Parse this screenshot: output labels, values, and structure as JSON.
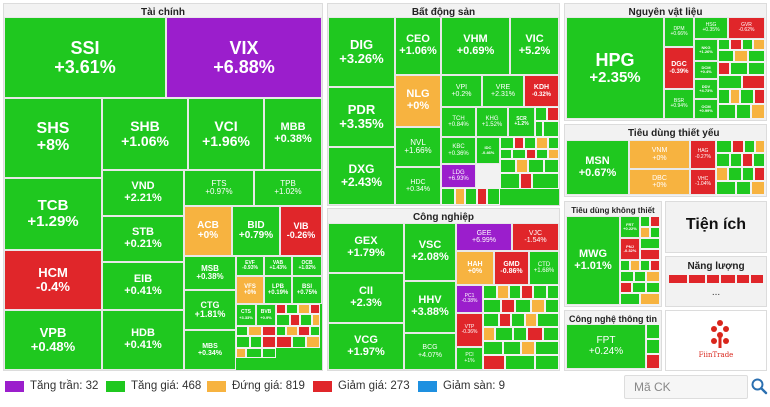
{
  "colors": {
    "ceiling": "#9b1ecc",
    "up": "#1fc81f",
    "ref": "#f7b340",
    "down": "#e0262a",
    "floor": "#1e90e0"
  },
  "sections": {
    "tai_chinh": "Tài chính",
    "bat_dong_san": "Bất động sản",
    "nguyen_vat_lieu": "Nguyên vật liệu",
    "cong_nghiep": "Công nghiệp",
    "tieu_dung_thiet_yeu": "Tiêu dùng thiết yếu",
    "tieu_dung_khong_thiet_yeu": "Tiêu dùng không thiết yếu",
    "tien_ich": "Tiện ích",
    "nang_luong": "Năng lượng",
    "cong_nghe_thong_tin": "Công nghệ thông tin"
  },
  "more": "...",
  "brand": "FiinTrade",
  "tiles": {
    "ssi": {
      "t": "SSI",
      "c": "+3.61%"
    },
    "vix": {
      "t": "VIX",
      "c": "+6.88%"
    },
    "shs": {
      "t": "SHS",
      "c": "+8%"
    },
    "shb": {
      "t": "SHB",
      "c": "+1.06%"
    },
    "vci": {
      "t": "VCI",
      "c": "+1.96%"
    },
    "mbb": {
      "t": "MBB",
      "c": "+0.38%"
    },
    "vnd": {
      "t": "VND",
      "c": "+2.21%"
    },
    "fts": {
      "t": "FTS",
      "c": "+0.97%"
    },
    "tpb": {
      "t": "TPB",
      "c": "+1.02%"
    },
    "tcb": {
      "t": "TCB",
      "c": "+1.29%"
    },
    "stb": {
      "t": "STB",
      "c": "+0.21%"
    },
    "acb": {
      "t": "ACB",
      "c": "+0%"
    },
    "bid": {
      "t": "BID",
      "c": "+0.79%"
    },
    "vib": {
      "t": "VIB",
      "c": "-0.26%"
    },
    "hcm": {
      "t": "HCM",
      "c": "-0.4%"
    },
    "eib": {
      "t": "EIB",
      "c": "+0.41%"
    },
    "msb": {
      "t": "MSB",
      "c": "+0.38%"
    },
    "evf": {
      "t": "EVF",
      "c": "-0.93%"
    },
    "vab": {
      "t": "VAB",
      "c": "+1.43%"
    },
    "ocb": {
      "t": "OCB",
      "c": "+1.02%"
    },
    "vfs": {
      "t": "VFS",
      "c": "+0%"
    },
    "lpb": {
      "t": "LPB",
      "c": "+0.19%"
    },
    "bsi": {
      "t": "BSI",
      "c": "+0.75%"
    },
    "vpb": {
      "t": "VPB",
      "c": "+0.48%"
    },
    "hdb": {
      "t": "HDB",
      "c": "+0.41%"
    },
    "ctg": {
      "t": "CTG",
      "c": "+1.81%"
    },
    "cts": {
      "t": "CTS",
      "c": "+3.33%"
    },
    "bvb": {
      "t": "BVB",
      "c": "+0.9%"
    },
    "mbs": {
      "t": "MBS",
      "c": "+0.34%"
    },
    "dig": {
      "t": "DIG",
      "c": "+3.26%"
    },
    "ceo": {
      "t": "CEO",
      "c": "+1.06%"
    },
    "vhm": {
      "t": "VHM",
      "c": "+0.69%"
    },
    "vic": {
      "t": "VIC",
      "c": "+5.2%"
    },
    "pdr": {
      "t": "PDR",
      "c": "+3.35%"
    },
    "nlg": {
      "t": "NLG",
      "c": "+0%"
    },
    "vpi": {
      "t": "VPI",
      "c": "+0.2%"
    },
    "vre": {
      "t": "VRE",
      "c": "+2.31%"
    },
    "kdh": {
      "t": "KDH",
      "c": "-0.32%"
    },
    "nvl": {
      "t": "NVL",
      "c": "+1.66%"
    },
    "tch": {
      "t": "TCH",
      "c": "+0.84%"
    },
    "khg": {
      "t": "KHG",
      "c": "+1.52%"
    },
    "scr": {
      "t": "SCR",
      "c": "+1.2%"
    },
    "dxg": {
      "t": "DXG",
      "c": "+2.43%"
    },
    "kbc": {
      "t": "KBC",
      "c": "+0.36%"
    },
    "idc": {
      "t": "IDC",
      "c": "-0.46%"
    },
    "hdc": {
      "t": "HDC",
      "c": "+0.34%"
    },
    "ldg": {
      "t": "LDG",
      "c": "+6.93%"
    },
    "gex": {
      "t": "GEX",
      "c": "+1.79%"
    },
    "vsc": {
      "t": "VSC",
      "c": "+2.08%"
    },
    "gee": {
      "t": "GEE",
      "c": "+6.99%"
    },
    "vjc": {
      "t": "VJC",
      "c": "-1.54%"
    },
    "hah": {
      "t": "HAH",
      "c": "+0%"
    },
    "gmd": {
      "t": "GMD",
      "c": "-0.86%"
    },
    "ctd": {
      "t": "CTD",
      "c": "+1.68%"
    },
    "cii": {
      "t": "CII",
      "c": "+2.3%"
    },
    "hhv": {
      "t": "HHV",
      "c": "+3.88%"
    },
    "pc1": {
      "t": "PC1",
      "c": "-0.38%"
    },
    "vcg": {
      "t": "VCG",
      "c": "+1.97%"
    },
    "bcg": {
      "t": "BCG",
      "c": "+4.07%"
    },
    "vtp": {
      "t": "VTP",
      "c": "-0.36%"
    },
    "pci": {
      "t": "PCI",
      "c": "+1%"
    },
    "hpg": {
      "t": "HPG",
      "c": "+2.35%"
    },
    "dpm": {
      "t": "DPM",
      "c": "+0.66%"
    },
    "hsg": {
      "t": "HSG",
      "c": "+0.35%"
    },
    "gvr": {
      "t": "GVR",
      "c": "-0.62%"
    },
    "dgc": {
      "t": "DGC",
      "c": "-0.39%"
    },
    "nkg": {
      "t": "NKG",
      "c": "+1.26%"
    },
    "dcm": {
      "t": "DCM",
      "c": "+0.4%"
    },
    "ddv": {
      "t": "DDV",
      "c": "+4.73%"
    },
    "bsr": {
      "t": "BSR",
      "c": "+0.94%"
    },
    "ocm": {
      "t": "OCM",
      "c": "+0.99%"
    },
    "msn": {
      "t": "MSN",
      "c": "+0.67%"
    },
    "vnm": {
      "t": "VNM",
      "c": "+0%"
    },
    "dbc": {
      "t": "DBC",
      "c": "+0%"
    },
    "hag": {
      "t": "HAG",
      "c": "-0.27%"
    },
    "vhc": {
      "t": "VHC",
      "c": "-1.04%"
    },
    "mwg": {
      "t": "MWG",
      "c": "+1.01%"
    },
    "frt": {
      "t": "FRT",
      "c": "+0.22%"
    },
    "pnj": {
      "t": "PNJ",
      "c": "-0.32%"
    },
    "fpt": {
      "t": "FPT",
      "c": "+0.24%"
    }
  },
  "legend": [
    {
      "key": "ceiling",
      "label": "Tăng trần: 32"
    },
    {
      "key": "up",
      "label": "Tăng giá: 468"
    },
    {
      "key": "ref",
      "label": "Đứng giá: 819"
    },
    {
      "key": "down",
      "label": "Giảm giá: 273"
    },
    {
      "key": "floor",
      "label": "Giảm sàn: 9"
    }
  ],
  "search": {
    "placeholder": "Mã CK"
  }
}
